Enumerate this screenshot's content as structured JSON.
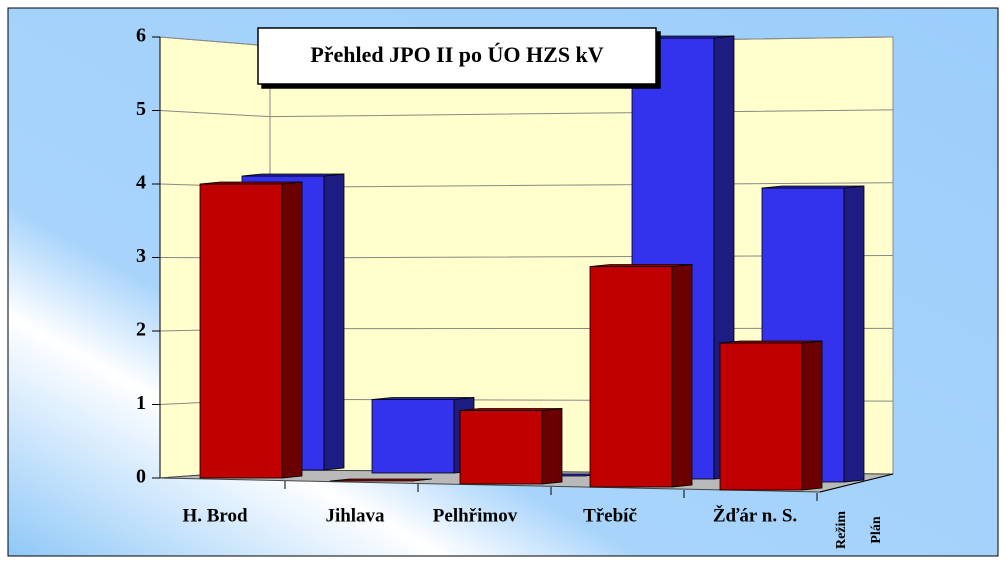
{
  "chart_data": {
    "type": "bar3d",
    "title": "Přehled JPO II po ÚO HZS kV",
    "categories": [
      "H. Brod",
      "Jihlava",
      "Pelhřimov",
      "Třebíč",
      "Žďár n. S."
    ],
    "series": [
      {
        "name": "Režim",
        "color": "#c00000",
        "values": [
          4,
          0,
          1,
          3,
          2
        ]
      },
      {
        "name": "Plán",
        "color": "#3333ee",
        "values": [
          4,
          1,
          0,
          6,
          4
        ]
      }
    ],
    "ylim": [
      0,
      6
    ],
    "yticks": [
      0,
      1,
      2,
      3,
      4,
      5,
      6
    ],
    "grid": true
  }
}
